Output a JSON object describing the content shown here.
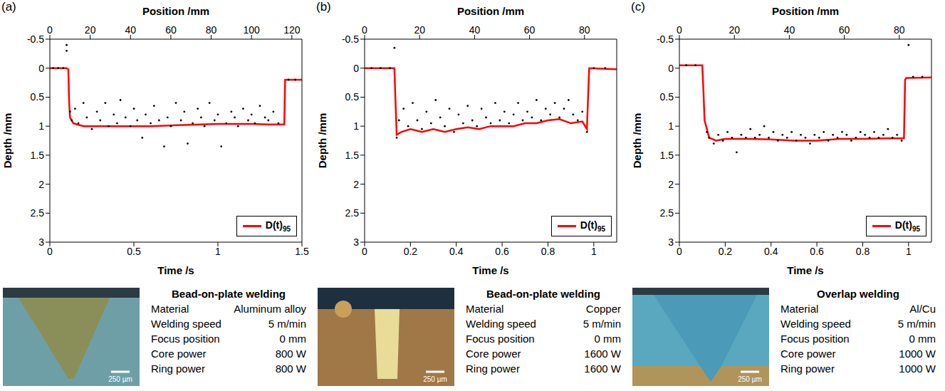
{
  "chart_data": [
    {
      "label": "(a)",
      "type": "scatter",
      "x_label": "Time /s",
      "x2_label": "Position /mm",
      "y_label": "Depth /mm",
      "xlim": [
        0,
        1.5
      ],
      "xticks": [
        0,
        0.5,
        1,
        1.5
      ],
      "x2lim": [
        0,
        125
      ],
      "x2ticks": [
        0,
        20,
        40,
        60,
        80,
        100,
        120
      ],
      "ylim": [
        -0.5,
        3
      ],
      "yticks": [
        -0.5,
        0,
        0.5,
        1,
        1.5,
        2,
        2.5,
        3
      ],
      "legend": "lower right",
      "series": [
        {
          "type": "scatter",
          "color": "#000000",
          "marker": "dot",
          "x": [
            0.02,
            0.05,
            0.08,
            0.1,
            0.1,
            0.12,
            0.13,
            0.15,
            0.17,
            0.2,
            0.22,
            0.25,
            0.28,
            0.3,
            0.33,
            0.35,
            0.38,
            0.4,
            0.42,
            0.45,
            0.48,
            0.5,
            0.52,
            0.55,
            0.57,
            0.6,
            0.62,
            0.65,
            0.68,
            0.7,
            0.72,
            0.75,
            0.78,
            0.8,
            0.82,
            0.85,
            0.88,
            0.9,
            0.92,
            0.95,
            0.98,
            1.0,
            1.02,
            1.05,
            1.08,
            1.1,
            1.12,
            1.15,
            1.18,
            1.2,
            1.22,
            1.25,
            1.28,
            1.3,
            1.33,
            1.36,
            1.42,
            1.46
          ],
          "values": [
            0,
            0,
            0,
            -0.4,
            -0.3,
            0.75,
            0.9,
            0.7,
            0.95,
            0.6,
            0.85,
            1.05,
            0.75,
            0.9,
            0.6,
            1.0,
            0.8,
            0.95,
            0.55,
            0.85,
            1.0,
            0.7,
            0.9,
            1.2,
            0.8,
            0.95,
            0.65,
            0.9,
            1.35,
            0.85,
            1.0,
            0.6,
            0.9,
            0.75,
            1.3,
            0.95,
            0.7,
            0.85,
            1.0,
            0.6,
            0.9,
            0.8,
            1.35,
            0.95,
            0.75,
            0.85,
            1.0,
            0.7,
            0.9,
            0.8,
            0.95,
            0.65,
            0.85,
            0.9,
            0.75,
            0.95,
            0.2,
            0.2
          ]
        },
        {
          "name": "D(t)95",
          "type": "line",
          "color": "#ff0000",
          "x": [
            0,
            0.1,
            0.11,
            0.115,
            0.12,
            0.14,
            0.2,
            0.4,
            0.6,
            0.8,
            1.0,
            1.2,
            1.3,
            1.395,
            1.4,
            1.5
          ],
          "values": [
            0,
            0,
            0.02,
            0.6,
            0.85,
            0.95,
            1.0,
            1.0,
            1.0,
            0.98,
            0.96,
            0.96,
            0.97,
            0.97,
            0.2,
            0.2
          ]
        }
      ],
      "micrograph": {
        "scale_bar": "250 µm"
      },
      "table": {
        "heading": "Bead-on-plate welding",
        "rows": [
          [
            "Material",
            "Aluminum alloy"
          ],
          [
            "Welding speed",
            "5 m/min"
          ],
          [
            "Focus position",
            "0 mm"
          ],
          [
            "Core power",
            "800 W"
          ],
          [
            "Ring power",
            "800 W"
          ]
        ]
      }
    },
    {
      "label": "(b)",
      "type": "scatter",
      "x_label": "Time /s",
      "x2_label": "Position /mm",
      "y_label": "Depth /mm",
      "xlim": [
        0,
        1.1
      ],
      "xticks": [
        0,
        0.2,
        0.4,
        0.6,
        0.8,
        1
      ],
      "x2lim": [
        0,
        91.7
      ],
      "x2ticks": [
        0,
        20,
        40,
        60,
        80
      ],
      "ylim": [
        -0.5,
        3
      ],
      "yticks": [
        -0.5,
        0,
        0.5,
        1,
        1.5,
        2,
        2.5,
        3
      ],
      "legend": "lower right",
      "series": [
        {
          "type": "scatter",
          "color": "#000000",
          "marker": "dot",
          "x": [
            0.03,
            0.07,
            0.11,
            0.13,
            0.14,
            0.15,
            0.17,
            0.19,
            0.21,
            0.23,
            0.25,
            0.27,
            0.29,
            0.31,
            0.33,
            0.35,
            0.37,
            0.39,
            0.41,
            0.43,
            0.45,
            0.47,
            0.49,
            0.51,
            0.53,
            0.55,
            0.57,
            0.59,
            0.61,
            0.63,
            0.65,
            0.67,
            0.69,
            0.71,
            0.73,
            0.75,
            0.77,
            0.79,
            0.81,
            0.83,
            0.85,
            0.87,
            0.89,
            0.91,
            0.93,
            0.95,
            0.97,
            1.0,
            1.05
          ],
          "values": [
            0,
            0,
            0,
            -0.35,
            1.2,
            0.9,
            0.7,
            1.0,
            0.6,
            0.9,
            1.05,
            0.75,
            0.95,
            0.55,
            0.85,
            1.0,
            0.7,
            1.1,
            0.8,
            0.95,
            0.65,
            0.9,
            1.0,
            0.7,
            0.85,
            0.95,
            0.6,
            0.9,
            0.75,
            0.95,
            0.8,
            0.6,
            0.9,
            0.75,
            0.85,
            0.55,
            0.9,
            0.7,
            0.8,
            0.6,
            0.85,
            0.7,
            0.55,
            0.8,
            0.9,
            0.75,
            1.1,
            0,
            0
          ]
        },
        {
          "name": "D(t)95",
          "type": "line",
          "color": "#ff0000",
          "x": [
            0,
            0.13,
            0.135,
            0.14,
            0.16,
            0.2,
            0.25,
            0.3,
            0.35,
            0.4,
            0.45,
            0.5,
            0.55,
            0.6,
            0.65,
            0.7,
            0.75,
            0.8,
            0.85,
            0.9,
            0.95,
            0.97,
            0.975,
            0.98,
            1.1
          ],
          "values": [
            0,
            0,
            0.6,
            1.15,
            1.1,
            1.05,
            1.1,
            1.05,
            1.1,
            1.05,
            1.02,
            1.05,
            1.0,
            1.0,
            1.0,
            0.95,
            0.95,
            0.9,
            0.88,
            0.95,
            0.92,
            1.05,
            0.5,
            0,
            0.02
          ]
        }
      ],
      "micrograph": {
        "scale_bar": "250 µm"
      },
      "table": {
        "heading": "Bead-on-plate welding",
        "rows": [
          [
            "Material",
            "Copper"
          ],
          [
            "Welding speed",
            "5 m/min"
          ],
          [
            "Focus position",
            "0 mm"
          ],
          [
            "Core power",
            "1600 W"
          ],
          [
            "Ring power",
            "1600 W"
          ]
        ]
      }
    },
    {
      "label": "(c)",
      "type": "scatter",
      "x_label": "Time /s",
      "x2_label": "Position /mm",
      "y_label": "Depth /mm",
      "xlim": [
        0,
        1.1
      ],
      "xticks": [
        0,
        0.2,
        0.4,
        0.6,
        0.8,
        1
      ],
      "x2lim": [
        0,
        91.7
      ],
      "x2ticks": [
        0,
        20,
        40,
        60,
        80
      ],
      "ylim": [
        -0.5,
        3
      ],
      "yticks": [
        -0.5,
        0,
        0.5,
        1,
        1.5,
        2,
        2.5,
        3
      ],
      "legend": "lower right",
      "series": [
        {
          "type": "scatter",
          "color": "#000000",
          "marker": "dot",
          "x": [
            0.03,
            0.07,
            0.12,
            0.13,
            0.15,
            0.17,
            0.19,
            0.21,
            0.23,
            0.25,
            0.27,
            0.29,
            0.31,
            0.33,
            0.35,
            0.37,
            0.39,
            0.41,
            0.43,
            0.45,
            0.47,
            0.49,
            0.51,
            0.53,
            0.55,
            0.57,
            0.59,
            0.61,
            0.63,
            0.65,
            0.67,
            0.69,
            0.71,
            0.73,
            0.75,
            0.77,
            0.79,
            0.81,
            0.83,
            0.85,
            0.87,
            0.89,
            0.91,
            0.93,
            0.95,
            0.97,
            1.0,
            1.02,
            1.06
          ],
          "values": [
            -0.05,
            -0.05,
            1.1,
            1.2,
            1.3,
            1.15,
            1.25,
            1.1,
            1.2,
            1.45,
            1.15,
            1.2,
            1.05,
            1.2,
            1.15,
            1.0,
            1.2,
            1.1,
            1.25,
            1.15,
            1.2,
            1.1,
            1.25,
            1.15,
            1.2,
            1.3,
            1.15,
            1.2,
            1.1,
            1.25,
            1.15,
            1.2,
            1.1,
            1.15,
            1.25,
            1.2,
            1.1,
            1.15,
            1.2,
            1.1,
            1.2,
            1.15,
            1.05,
            1.2,
            1.15,
            1.25,
            -0.4,
            0.15,
            0.15
          ]
        },
        {
          "name": "D(t)95",
          "type": "line",
          "color": "#ff0000",
          "x": [
            0,
            0.1,
            0.105,
            0.11,
            0.13,
            0.16,
            0.2,
            0.3,
            0.4,
            0.5,
            0.6,
            0.7,
            0.8,
            0.9,
            0.98,
            0.985,
            0.99,
            1.1
          ],
          "values": [
            -0.05,
            -0.05,
            0.4,
            0.9,
            1.2,
            1.25,
            1.22,
            1.22,
            1.23,
            1.25,
            1.25,
            1.22,
            1.22,
            1.21,
            1.21,
            0.2,
            0.17,
            0.16
          ]
        }
      ],
      "micrograph": {
        "scale_bar": "250 µm"
      },
      "table": {
        "heading": "Overlap welding",
        "rows": [
          [
            "Material",
            "Al/Cu"
          ],
          [
            "Welding speed",
            "5 m/min"
          ],
          [
            "Focus position",
            "0 mm"
          ],
          [
            "Core power",
            "1000 W"
          ],
          [
            "Ring power",
            "1000 W"
          ]
        ]
      }
    }
  ]
}
